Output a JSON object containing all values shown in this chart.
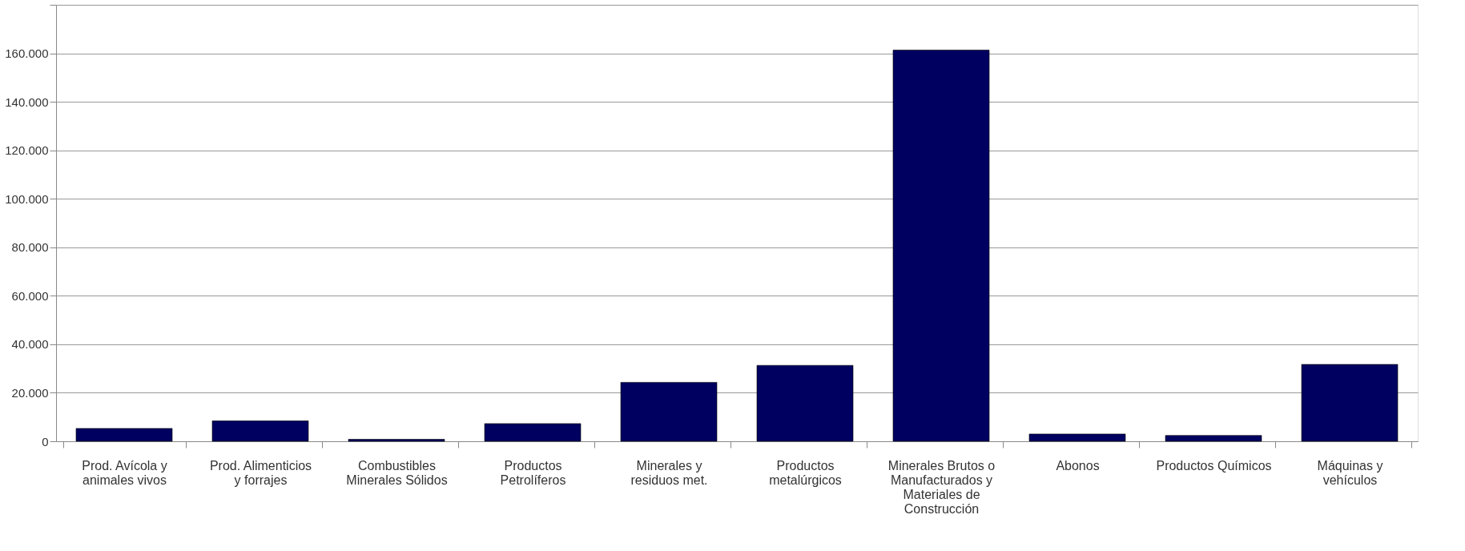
{
  "chart_data": {
    "type": "bar",
    "categories": [
      "Prod. Avícola y animales vivos",
      "Prod. Alimenticios y forrajes",
      "Combustibles Minerales Sólidos",
      "Productos Petrolíferos",
      "Minerales y residuos met.",
      "Productos metalúrgicos",
      "Minerales Brutos o Manufacturados y Materiales de Construcción",
      "Abonos",
      "Productos Químicos",
      "Máquinas y vehículos"
    ],
    "values": [
      5300,
      8400,
      800,
      7300,
      24300,
      31300,
      161300,
      3000,
      2400,
      31700
    ],
    "color": "#000060",
    "ylim": [
      0,
      180000
    ],
    "yticks": [
      0,
      {
        "value": 20000,
        "label": "20.000"
      },
      {
        "value": 40000,
        "label": "40.000"
      },
      {
        "value": 60000,
        "label": "60.000"
      },
      {
        "value": 80000,
        "label": "80.000"
      },
      {
        "value": 100000,
        "label": "100.000"
      },
      {
        "value": 120000,
        "label": "120.000"
      },
      {
        "value": 140000,
        "label": "140.000"
      },
      {
        "value": 160000,
        "label": "160.000"
      },
      {
        "value": 180000,
        "label": null
      }
    ],
    "grid": "y"
  }
}
